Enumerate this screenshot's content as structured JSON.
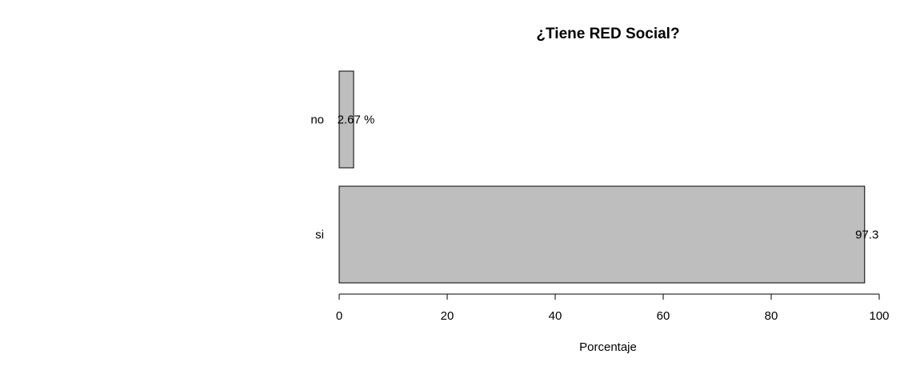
{
  "chart_data": {
    "type": "bar",
    "orientation": "horizontal",
    "title": "¿Tiene RED Social?",
    "xlabel": "Porcentaje",
    "ylabel": "",
    "categories": [
      "no",
      "si"
    ],
    "values": [
      2.67,
      97.3
    ],
    "data_labels": [
      "2.67 %",
      "97.3"
    ],
    "xlim": [
      0,
      100
    ],
    "xticks": [
      0,
      20,
      40,
      60,
      80,
      100
    ],
    "grid": false,
    "legend": "none",
    "bar_fill": "#bebebe",
    "bar_stroke": "#000000"
  }
}
